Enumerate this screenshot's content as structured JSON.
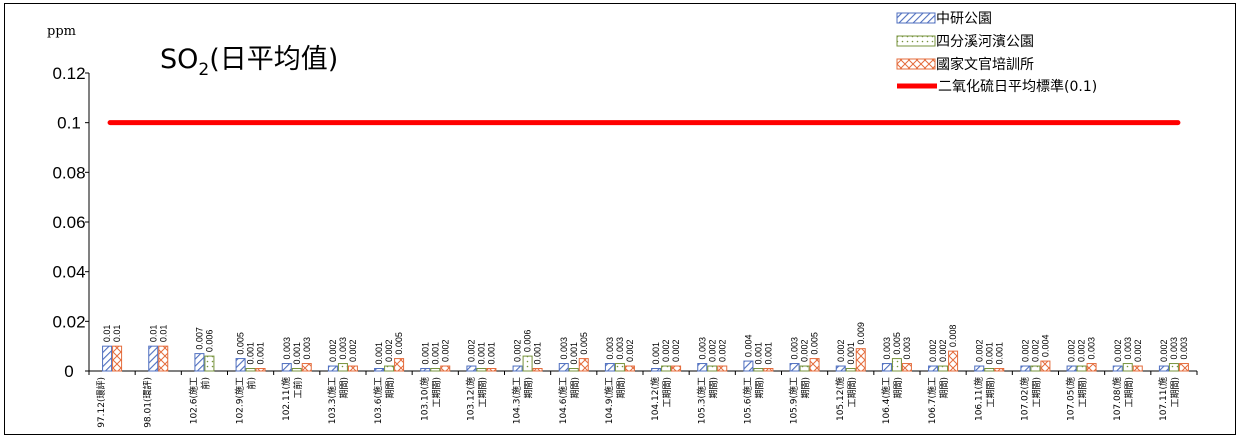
{
  "chart_data": {
    "type": "bar",
    "unit": "ppm",
    "title_main": "SO",
    "title_sub": "2",
    "title_rest": "(日平均值)",
    "ylim": [
      0,
      0.12
    ],
    "yticks": [
      "0",
      "0.02",
      "0.04",
      "0.06",
      "0.08",
      "0.1",
      "0.12"
    ],
    "standard": {
      "name": "二氧化硫日平均標準(0.1)",
      "value": 0.1,
      "color": "#ff0000"
    },
    "categories": [
      [
        "97.12(環評)"
      ],
      [
        "98.01(環評)"
      ],
      [
        "102.6(施工",
        "前)"
      ],
      [
        "102.9(施工",
        "前)"
      ],
      [
        "102.11(施",
        "工前)"
      ],
      [
        "103.3(施工",
        "期間)"
      ],
      [
        "103.6(施工",
        "期間)"
      ],
      [
        "103.10(施",
        "工期間)"
      ],
      [
        "103.12(施",
        "工期間)"
      ],
      [
        "104.3(施工",
        "期間)"
      ],
      [
        "104.6(施工",
        "期間)"
      ],
      [
        "104.9(施工",
        "期間)"
      ],
      [
        "104.12(施",
        "工期間)"
      ],
      [
        "105.3(施工",
        "期間)"
      ],
      [
        "105.6(施工",
        "期間)"
      ],
      [
        "105.9(施工",
        "期間)"
      ],
      [
        "105.12(施",
        "工期間)"
      ],
      [
        "106.4(施工",
        "期間)"
      ],
      [
        "106.7(施工",
        "期間)"
      ],
      [
        "106.11(施",
        "工期間)"
      ],
      [
        "107.02(施",
        "工期間)"
      ],
      [
        "107.05(施",
        "工期間)"
      ],
      [
        "107.08(施",
        "工期間)"
      ],
      [
        "107.11(施",
        "工期間)"
      ]
    ],
    "series": [
      {
        "name": "中研公園",
        "color": "#4f6fbf",
        "pattern": "diag",
        "values": [
          0.01,
          0.01,
          0.007,
          0.005,
          0.003,
          0.002,
          0.001,
          0.001,
          0.002,
          0.002,
          0.003,
          0.003,
          0.001,
          0.003,
          0.004,
          0.003,
          0.002,
          0.003,
          0.002,
          0.002,
          0.002,
          0.002,
          0.002,
          0.002
        ],
        "labels": [
          "0.01",
          "0.01",
          "0.007",
          "0.005",
          "0.003",
          "0.002",
          "0.001",
          "0.001",
          "0.002",
          "0.002",
          "0.003",
          "0.003",
          "0.001",
          "0.003",
          "0.004",
          "0.003",
          "0.002",
          "0.003",
          "0.002",
          "0.002",
          "0.002",
          "0.002",
          "0.002",
          "0.002"
        ]
      },
      {
        "name": "四分溪河濱公園",
        "color": "#77933c",
        "pattern": "dots",
        "values": [
          null,
          null,
          0.006,
          0.001,
          0.001,
          0.003,
          0.002,
          0.001,
          0.001,
          0.006,
          0.001,
          0.003,
          0.002,
          0.002,
          0.001,
          0.002,
          0.001,
          0.005,
          0.002,
          0.001,
          0.002,
          0.002,
          0.003,
          0.003
        ],
        "labels": [
          "",
          "",
          "0.006",
          "0.001",
          "0.001",
          "0.003",
          "0.002",
          "0.001",
          "0.001",
          "0.006",
          "0.001",
          "0.003",
          "0.002",
          "0.002",
          "0.001",
          "0.002",
          "0.001",
          "0.005",
          "0.002",
          "0.001",
          "0.002",
          "0.002",
          "0.003",
          "0.003"
        ]
      },
      {
        "name": "國家文官培訓所",
        "color": "#e46c3c",
        "pattern": "cross",
        "values": [
          0.01,
          0.01,
          null,
          0.001,
          0.003,
          0.002,
          0.005,
          0.002,
          0.001,
          0.001,
          0.005,
          0.002,
          0.002,
          0.002,
          0.001,
          0.005,
          0.009,
          0.003,
          0.008,
          0.001,
          0.004,
          0.003,
          0.002,
          0.003
        ],
        "labels": [
          "0.01",
          "0.01",
          "",
          "0.001",
          "0.003",
          "0.002",
          "0.005",
          "0.002",
          "0.001",
          "0.001",
          "0.005",
          "0.002",
          "0.002",
          "0.002",
          "0.001",
          "0.005",
          "0.009",
          "0.003",
          "0.008",
          "0.001",
          "0.004",
          "0.003",
          "0.002",
          "0.003"
        ]
      }
    ],
    "legend_position": "top-right"
  }
}
